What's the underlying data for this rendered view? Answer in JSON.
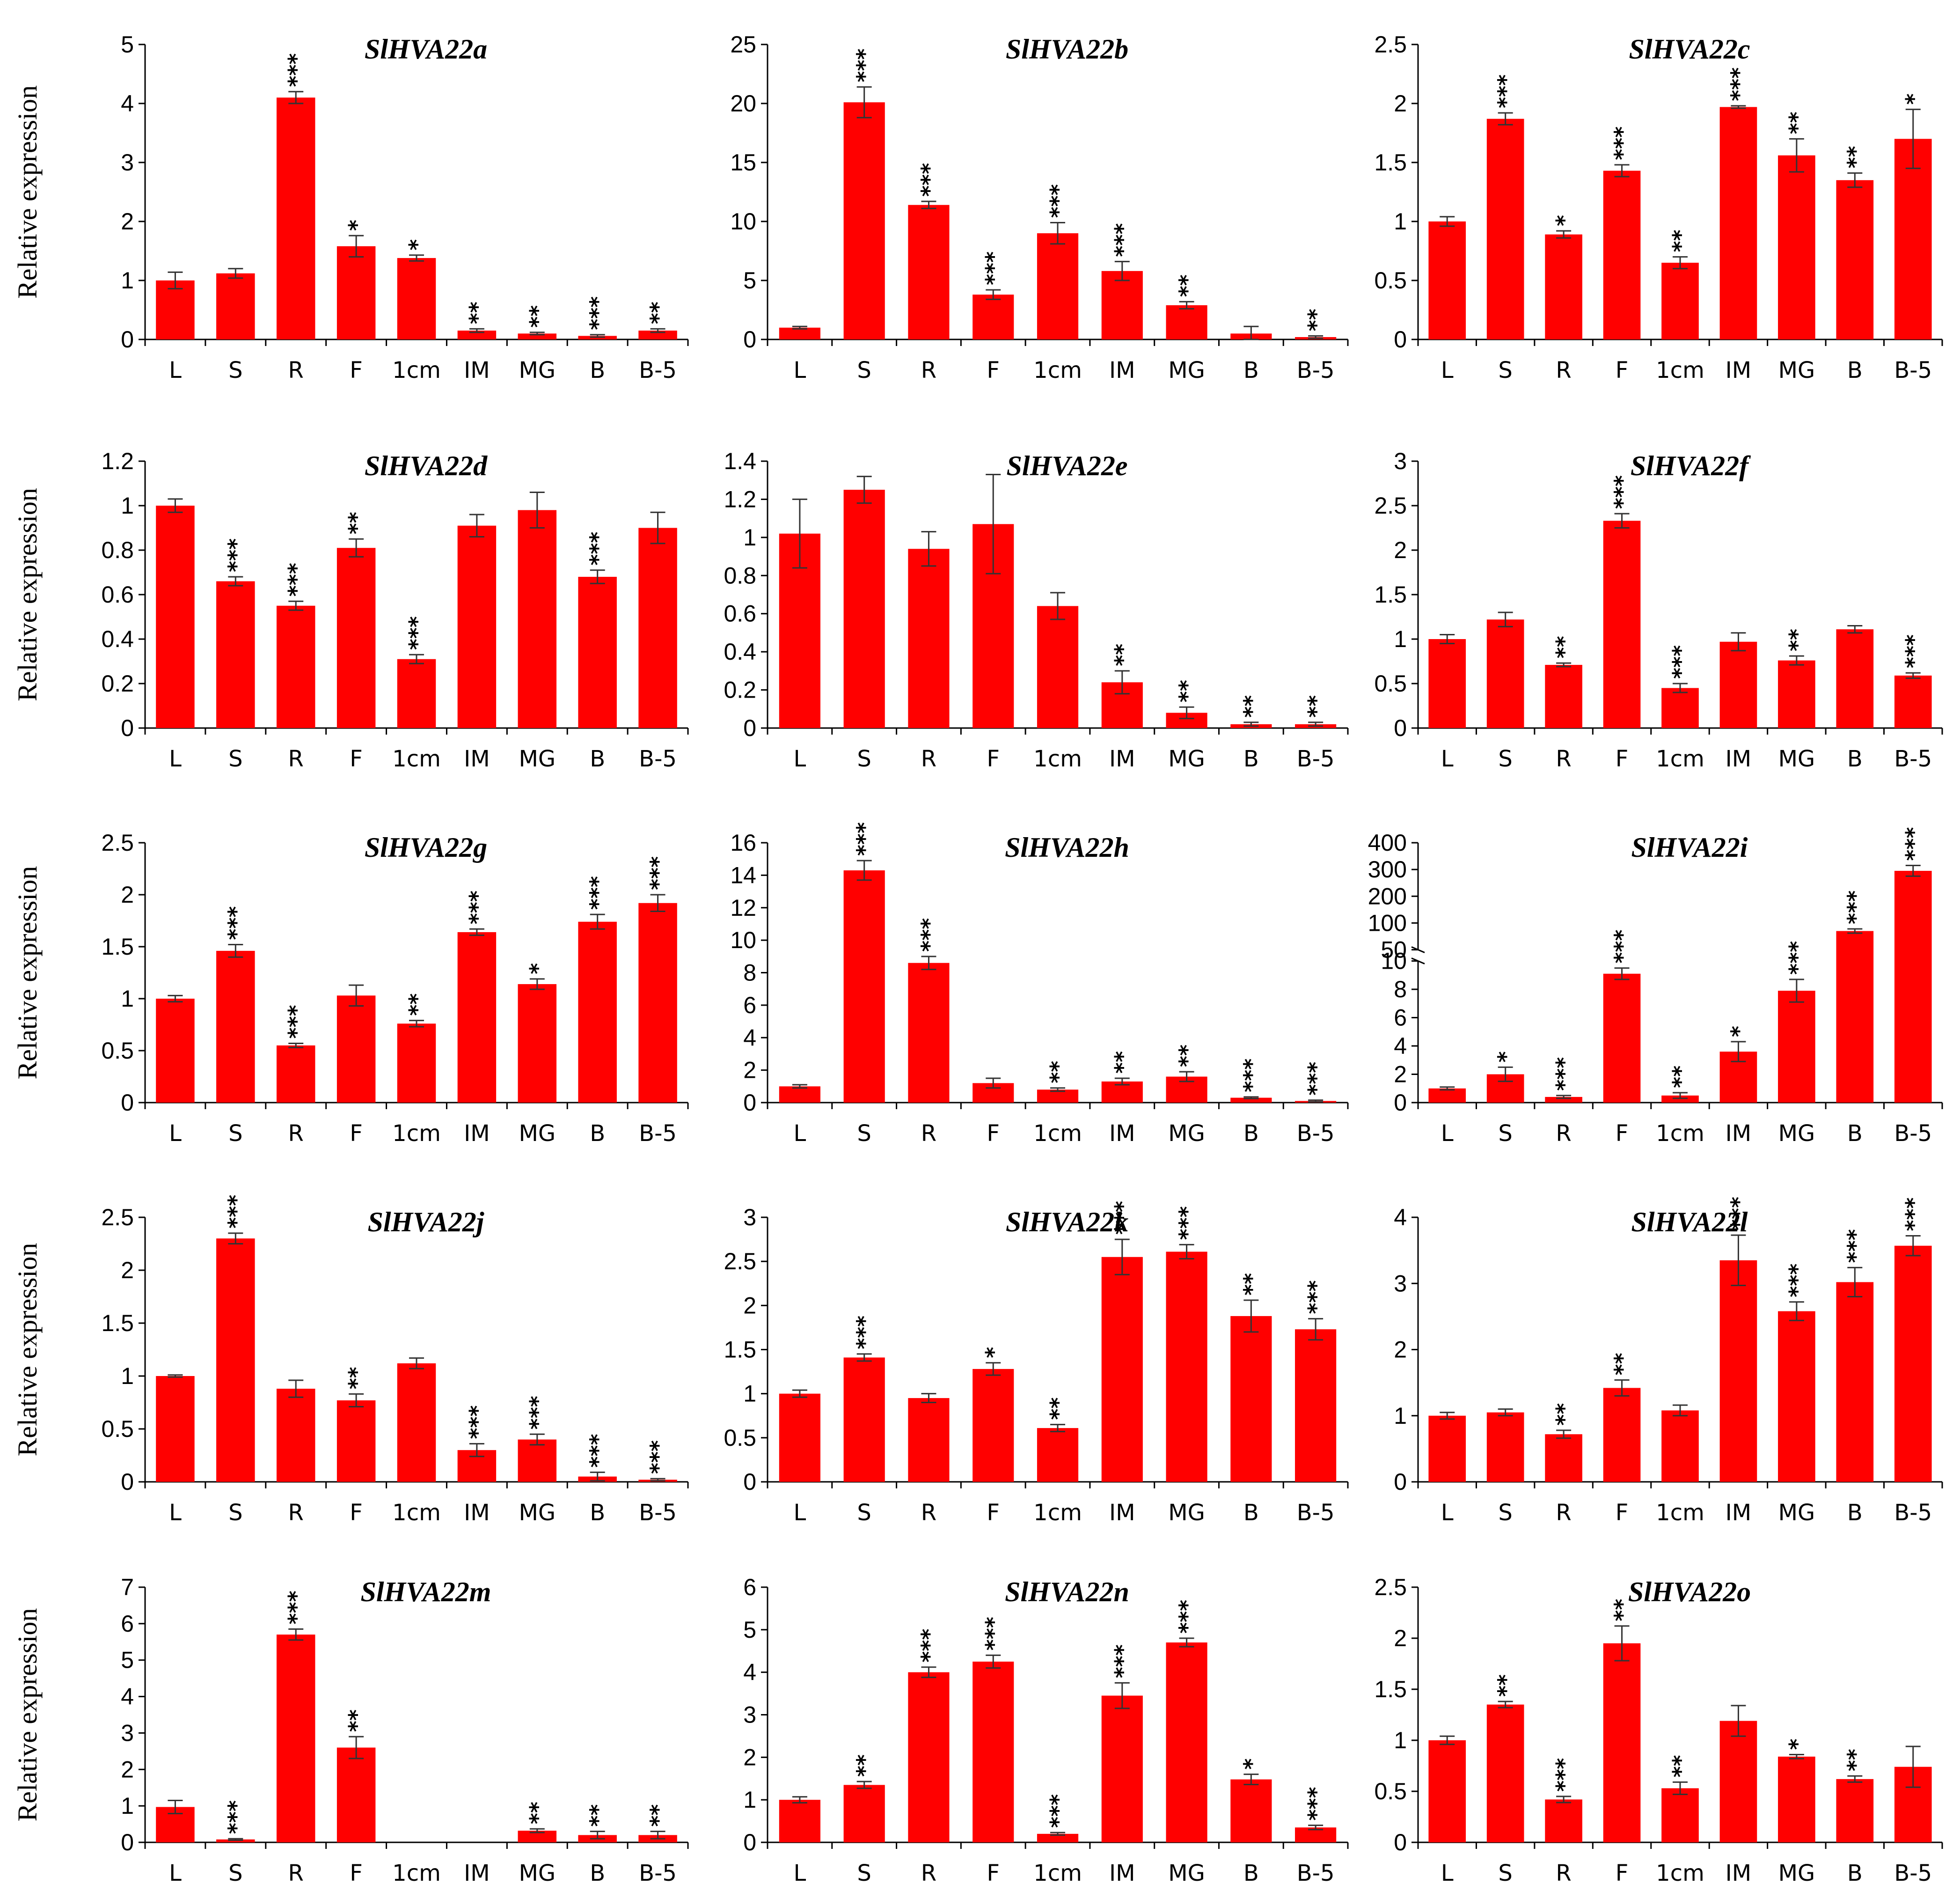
{
  "figure": {
    "ylabel": "Relative expression",
    "bar_color": "#ff0000"
  },
  "chart_data": [
    {
      "type": "bar",
      "title": "SlHVA22a",
      "ylabel": "Relative expression",
      "categories": [
        "L",
        "S",
        "R",
        "F",
        "1cm",
        "IM",
        "MG",
        "B",
        "B-5"
      ],
      "values": [
        1.0,
        1.12,
        4.1,
        1.58,
        1.38,
        0.15,
        0.1,
        0.06,
        0.15
      ],
      "errors": [
        0.14,
        0.08,
        0.1,
        0.18,
        0.05,
        0.03,
        0.02,
        0.02,
        0.03
      ],
      "sig": [
        "",
        "",
        "***",
        "*",
        "*",
        "**",
        "**",
        "***",
        "**"
      ],
      "ylim": [
        0,
        5
      ],
      "yticks": [
        0,
        1,
        2,
        3,
        4,
        5
      ]
    },
    {
      "type": "bar",
      "title": "SlHVA22b",
      "ylabel": "",
      "categories": [
        "L",
        "S",
        "R",
        "F",
        "1cm",
        "IM",
        "MG",
        "B",
        "B-5"
      ],
      "values": [
        1.0,
        20.1,
        11.4,
        3.8,
        9.0,
        5.8,
        2.9,
        0.5,
        0.2
      ],
      "errors": [
        0.1,
        1.3,
        0.3,
        0.4,
        0.9,
        0.8,
        0.3,
        0.6,
        0.1
      ],
      "sig": [
        "",
        "***",
        "***",
        "***",
        "***",
        "***",
        "**",
        "",
        "**"
      ],
      "ylim": [
        0,
        25
      ],
      "yticks": [
        0,
        5,
        10,
        15,
        20,
        25
      ]
    },
    {
      "type": "bar",
      "title": "SlHVA22c",
      "ylabel": "",
      "categories": [
        "L",
        "S",
        "R",
        "F",
        "1cm",
        "IM",
        "MG",
        "B",
        "B-5"
      ],
      "values": [
        1.0,
        1.87,
        0.89,
        1.43,
        0.65,
        1.97,
        1.56,
        1.35,
        1.7
      ],
      "errors": [
        0.04,
        0.05,
        0.03,
        0.05,
        0.05,
        0.01,
        0.14,
        0.06,
        0.25
      ],
      "sig": [
        "",
        "***",
        "*",
        "***",
        "**",
        "***",
        "**",
        "**",
        "*"
      ],
      "ylim": [
        0,
        2.5
      ],
      "yticks": [
        0,
        0.5,
        1,
        1.5,
        2,
        2.5
      ]
    },
    {
      "type": "bar",
      "title": "SlHVA22d",
      "ylabel": "Relative expression",
      "categories": [
        "L",
        "S",
        "R",
        "F",
        "1cm",
        "IM",
        "MG",
        "B",
        "B-5"
      ],
      "values": [
        1.0,
        0.66,
        0.55,
        0.81,
        0.31,
        0.91,
        0.98,
        0.68,
        0.9
      ],
      "errors": [
        0.03,
        0.02,
        0.02,
        0.04,
        0.02,
        0.05,
        0.08,
        0.03,
        0.07
      ],
      "sig": [
        "",
        "***",
        "***",
        "**",
        "***",
        "",
        "",
        "***",
        ""
      ],
      "ylim": [
        0,
        1.2
      ],
      "yticks": [
        0,
        0.2,
        0.4,
        0.6,
        0.8,
        1,
        1.2
      ]
    },
    {
      "type": "bar",
      "title": "SlHVA22e",
      "ylabel": "",
      "categories": [
        "L",
        "S",
        "R",
        "F",
        "1cm",
        "IM",
        "MG",
        "B",
        "B-5"
      ],
      "values": [
        1.02,
        1.25,
        0.94,
        1.07,
        0.64,
        0.24,
        0.08,
        0.02,
        0.02
      ],
      "errors": [
        0.18,
        0.07,
        0.09,
        0.26,
        0.07,
        0.06,
        0.03,
        0.01,
        0.01
      ],
      "sig": [
        "",
        "",
        "",
        "",
        "",
        "**",
        "**",
        "**",
        "**"
      ],
      "ylim": [
        0,
        1.4
      ],
      "yticks": [
        0,
        0.2,
        0.4,
        0.6,
        0.8,
        1,
        1.2,
        1.4
      ]
    },
    {
      "type": "bar",
      "title": "SlHVA22f",
      "ylabel": "",
      "categories": [
        "L",
        "S",
        "R",
        "F",
        "1cm",
        "IM",
        "MG",
        "B",
        "B-5"
      ],
      "values": [
        1.0,
        1.22,
        0.71,
        2.33,
        0.45,
        0.97,
        0.76,
        1.11,
        0.59
      ],
      "errors": [
        0.05,
        0.08,
        0.02,
        0.08,
        0.05,
        0.1,
        0.05,
        0.04,
        0.03
      ],
      "sig": [
        "",
        "",
        "**",
        "***",
        "***",
        "",
        "**",
        "",
        "***"
      ],
      "ylim": [
        0,
        3
      ],
      "yticks": [
        0,
        0.5,
        1,
        1.5,
        2,
        2.5,
        3
      ]
    },
    {
      "type": "bar",
      "title": "SlHVA22g",
      "ylabel": "Relative expression",
      "categories": [
        "L",
        "S",
        "R",
        "F",
        "1cm",
        "IM",
        "MG",
        "B",
        "B-5"
      ],
      "values": [
        1.0,
        1.46,
        0.55,
        1.03,
        0.76,
        1.64,
        1.14,
        1.74,
        1.92
      ],
      "errors": [
        0.03,
        0.06,
        0.02,
        0.1,
        0.03,
        0.03,
        0.05,
        0.07,
        0.08
      ],
      "sig": [
        "",
        "***",
        "***",
        "",
        "**",
        "***",
        "*",
        "***",
        "***"
      ],
      "ylim": [
        0,
        2.5
      ],
      "yticks": [
        0,
        0.5,
        1,
        1.5,
        2,
        2.5
      ]
    },
    {
      "type": "bar",
      "title": "SlHVA22h",
      "ylabel": "",
      "categories": [
        "L",
        "S",
        "R",
        "F",
        "1cm",
        "IM",
        "MG",
        "B",
        "B-5"
      ],
      "values": [
        1.0,
        14.3,
        8.6,
        1.2,
        0.8,
        1.3,
        1.6,
        0.3,
        0.1
      ],
      "errors": [
        0.1,
        0.6,
        0.4,
        0.3,
        0.1,
        0.2,
        0.3,
        0.05,
        0.05
      ],
      "sig": [
        "",
        "***",
        "***",
        "",
        "**",
        "**",
        "**",
        "***",
        "***"
      ],
      "ylim": [
        0,
        16
      ],
      "yticks": [
        0,
        2,
        4,
        6,
        8,
        10,
        12,
        14,
        16
      ]
    },
    {
      "type": "bar",
      "title": "SlHVA22i",
      "ylabel": "",
      "axis_break": true,
      "categories": [
        "L",
        "S",
        "R",
        "F",
        "1cm",
        "IM",
        "MG",
        "B",
        "B-5"
      ],
      "values": [
        1.0,
        2.0,
        0.4,
        9.1,
        0.5,
        3.6,
        7.9,
        85,
        295
      ],
      "errors": [
        0.1,
        0.5,
        0.1,
        0.4,
        0.2,
        0.7,
        0.8,
        4,
        20
      ],
      "sig": [
        "",
        "*",
        "***",
        "***",
        "**",
        "*",
        "***",
        "***",
        "***"
      ],
      "yticks_lower": [
        0,
        2,
        4,
        6,
        8,
        10
      ],
      "yticks_upper": [
        50,
        100,
        200,
        300,
        400
      ]
    },
    {
      "type": "bar",
      "title": "SlHVA22j",
      "ylabel": "Relative expression",
      "categories": [
        "L",
        "S",
        "R",
        "F",
        "1cm",
        "IM",
        "MG",
        "B",
        "B-5"
      ],
      "values": [
        1.0,
        2.3,
        0.88,
        0.77,
        1.12,
        0.3,
        0.4,
        0.05,
        0.02
      ],
      "errors": [
        0.01,
        0.05,
        0.08,
        0.06,
        0.05,
        0.06,
        0.05,
        0.04,
        0.01
      ],
      "sig": [
        "",
        "***",
        "",
        "**",
        "",
        "***",
        "***",
        "***",
        "***"
      ],
      "ylim": [
        0,
        2.5
      ],
      "yticks": [
        0,
        0.5,
        1,
        1.5,
        2,
        2.5
      ]
    },
    {
      "type": "bar",
      "title": "SlHVA22k",
      "ylabel": "",
      "categories": [
        "L",
        "S",
        "R",
        "F",
        "1cm",
        "IM",
        "MG",
        "B",
        "B-5"
      ],
      "values": [
        1.0,
        1.41,
        0.95,
        1.28,
        0.61,
        2.55,
        2.61,
        1.88,
        1.73
      ],
      "errors": [
        0.04,
        0.04,
        0.05,
        0.07,
        0.04,
        0.2,
        0.08,
        0.18,
        0.12
      ],
      "sig": [
        "",
        "***",
        "",
        "*",
        "**",
        "***",
        "***",
        "**",
        "***"
      ],
      "ylim": [
        0,
        3
      ],
      "yticks": [
        0,
        0.5,
        1,
        1.5,
        2,
        2.5,
        3
      ]
    },
    {
      "type": "bar",
      "title": "SlHVA22l",
      "ylabel": "",
      "categories": [
        "L",
        "S",
        "R",
        "F",
        "1cm",
        "IM",
        "MG",
        "B",
        "B-5"
      ],
      "values": [
        1.0,
        1.05,
        0.72,
        1.42,
        1.08,
        3.35,
        2.58,
        3.02,
        3.57
      ],
      "errors": [
        0.05,
        0.05,
        0.06,
        0.12,
        0.08,
        0.38,
        0.14,
        0.22,
        0.15
      ],
      "sig": [
        "",
        "",
        "**",
        "**",
        "",
        "***",
        "***",
        "***",
        "***"
      ],
      "ylim": [
        0,
        4
      ],
      "yticks": [
        0,
        1,
        2,
        3,
        4
      ]
    },
    {
      "type": "bar",
      "title": "SlHVA22m",
      "ylabel": "Relative expression",
      "categories": [
        "L",
        "S",
        "R",
        "F",
        "1cm",
        "IM",
        "MG",
        "B",
        "B-5"
      ],
      "values": [
        0.97,
        0.08,
        5.7,
        2.6,
        0,
        0,
        0.32,
        0.2,
        0.2
      ],
      "errors": [
        0.18,
        0.02,
        0.15,
        0.3,
        0,
        0,
        0.05,
        0.1,
        0.1
      ],
      "sig": [
        "",
        "***",
        "***",
        "**",
        "",
        "",
        "**",
        "**",
        "**"
      ],
      "ylim": [
        0,
        7
      ],
      "yticks": [
        0,
        1,
        2,
        3,
        4,
        5,
        6,
        7
      ]
    },
    {
      "type": "bar",
      "title": "SlHVA22n",
      "ylabel": "",
      "categories": [
        "L",
        "S",
        "R",
        "F",
        "1cm",
        "IM",
        "MG",
        "B",
        "B-5"
      ],
      "values": [
        1.0,
        1.35,
        4.0,
        4.25,
        0.2,
        3.45,
        4.7,
        1.48,
        0.35
      ],
      "errors": [
        0.07,
        0.08,
        0.12,
        0.15,
        0.03,
        0.3,
        0.1,
        0.12,
        0.05
      ],
      "sig": [
        "",
        "**",
        "***",
        "***",
        "***",
        "***",
        "***",
        "*",
        "***"
      ],
      "ylim": [
        0,
        6
      ],
      "yticks": [
        0,
        1,
        2,
        3,
        4,
        5,
        6
      ]
    },
    {
      "type": "bar",
      "title": "SlHVA22o",
      "ylabel": "",
      "categories": [
        "L",
        "S",
        "R",
        "F",
        "1cm",
        "IM",
        "MG",
        "B",
        "B-5"
      ],
      "values": [
        1.0,
        1.35,
        0.42,
        1.95,
        0.53,
        1.19,
        0.84,
        0.62,
        0.74
      ],
      "errors": [
        0.04,
        0.03,
        0.03,
        0.17,
        0.06,
        0.15,
        0.02,
        0.03,
        0.2
      ],
      "sig": [
        "",
        "**",
        "***",
        "**",
        "**",
        "",
        "*",
        "**",
        ""
      ],
      "ylim": [
        0,
        2.5
      ],
      "yticks": [
        0,
        0.5,
        1,
        1.5,
        2,
        2.5
      ]
    }
  ]
}
